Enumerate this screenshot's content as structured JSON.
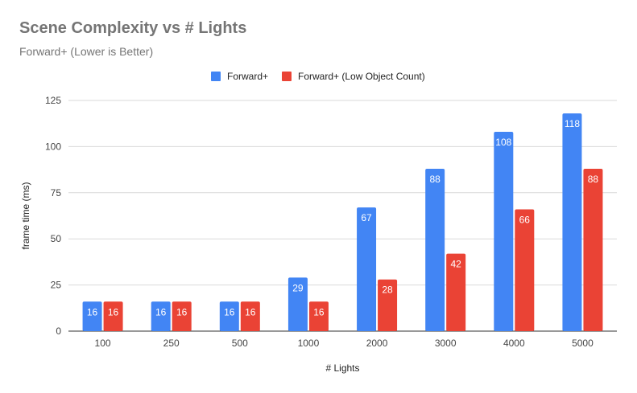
{
  "chart_data": {
    "type": "bar",
    "title": "Scene Complexity vs # Lights",
    "subtitle": "Forward+ (Lower is Better)",
    "xlabel": "# Lights",
    "ylabel": "frame time (ms)",
    "categories": [
      "100",
      "250",
      "500",
      "1000",
      "2000",
      "3000",
      "4000",
      "5000"
    ],
    "series": [
      {
        "name": "Forward+",
        "color": "#4285F4",
        "values": [
          16,
          16,
          16,
          29,
          67,
          88,
          108,
          118
        ]
      },
      {
        "name": "Forward+ (Low Object Count)",
        "color": "#EA4335",
        "values": [
          16,
          16,
          16,
          16,
          28,
          42,
          66,
          88
        ]
      }
    ],
    "ylim": [
      0,
      125
    ],
    "yticks": [
      0,
      25,
      50,
      75,
      100,
      125
    ],
    "grid": true,
    "legend": "top-center",
    "data_labels": true
  }
}
